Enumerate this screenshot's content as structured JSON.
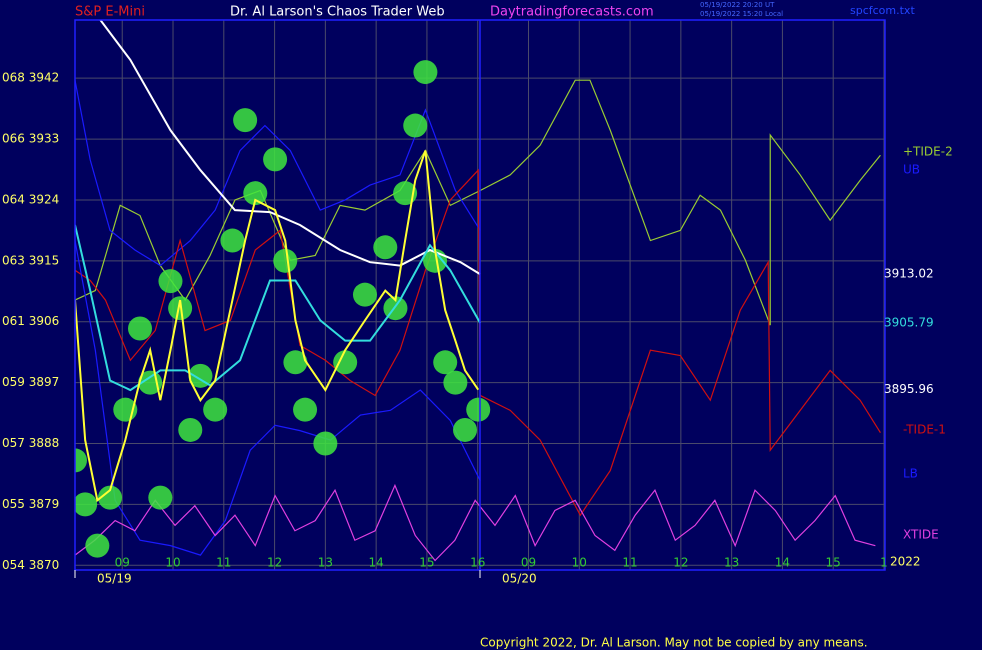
{
  "header": {
    "symbol": "S&P E-Mini",
    "site_title": "Dr. Al Larson's Chaos Trader Web",
    "url": "Daytradingforecasts.com",
    "time_ut": "05/19/2022 20:20 UT",
    "time_local": "05/19/2022 15:20 Local",
    "file": "spcfcom.txt"
  },
  "footer": "Copyright 2022, Dr. Al Larson. May not be copied by any means.",
  "chart_data": {
    "type": "line",
    "xlim": [
      8.07,
      24.02
    ],
    "ylim": [
      3869.3,
      3950.6
    ],
    "grid": true,
    "yticks": [
      {
        "value": 3942,
        "label": "068  3942"
      },
      {
        "value": 3933,
        "label": "066  3933"
      },
      {
        "value": 3924,
        "label": "064  3924"
      },
      {
        "value": 3915,
        "label": "063  3915"
      },
      {
        "value": 3906,
        "label": "061  3906"
      },
      {
        "value": 3897,
        "label": "059  3897"
      },
      {
        "value": 3888,
        "label": "057  3888"
      },
      {
        "value": 3879,
        "label": "055  3879"
      },
      {
        "value": 3870,
        "label": "054  3870"
      }
    ],
    "xticks": [
      {
        "value": 9,
        "label": "09"
      },
      10,
      11,
      12,
      13,
      14,
      15,
      16,
      {
        "value": 17,
        "label": "09"
      },
      {
        "value": 18,
        "label": "10"
      },
      {
        "value": 19,
        "label": "11"
      },
      {
        "value": 20,
        "label": "12"
      },
      {
        "value": 21,
        "label": "13"
      },
      {
        "value": 22,
        "label": "14"
      },
      {
        "value": 23,
        "label": "15"
      },
      {
        "value": 24,
        "label": "1"
      }
    ],
    "date_labels": [
      "05/19",
      "05/20"
    ],
    "year_label": "2022",
    "series": [
      {
        "name": "+TIDE-2",
        "color": "#9acd32",
        "x": [
          8.07,
          8.47,
          8.96,
          9.35,
          9.75,
          10.24,
          10.73,
          11.22,
          11.72,
          12.31,
          12.8,
          13.29,
          13.78,
          14.47,
          14.97,
          15.46,
          16.05,
          16.64,
          17.23,
          17.92,
          18.21,
          18.61,
          19.4,
          19.99,
          20.38,
          20.78,
          21.27,
          21.76,
          21.76,
          22.35,
          22.94,
          23.53,
          23.93
        ],
        "values": [
          3909.2,
          3910.6,
          3923.2,
          3921.7,
          3914.3,
          3909.2,
          3915.8,
          3924.0,
          3925.4,
          3915.1,
          3915.8,
          3923.2,
          3922.5,
          3925.4,
          3931.3,
          3923.2,
          3925.4,
          3927.7,
          3932.1,
          3941.7,
          3941.7,
          3934.3,
          3918.0,
          3919.5,
          3924.7,
          3922.5,
          3915.1,
          3905.5,
          3933.6,
          3927.7,
          3921.0,
          3926.9,
          3930.6
        ]
      },
      {
        "name": "UB",
        "color": "#1a1aff",
        "x": [
          8.07,
          8.37,
          8.76,
          9.25,
          9.75,
          10.34,
          10.83,
          11.32,
          11.81,
          12.31,
          12.9,
          13.39,
          13.88,
          14.47,
          14.97,
          15.56,
          16.05
        ],
        "values": [
          3941.7,
          3929.9,
          3919.5,
          3916.6,
          3914.3,
          3918.0,
          3922.5,
          3931.3,
          3935.0,
          3931.3,
          3922.5,
          3924.0,
          3926.2,
          3927.7,
          3937.3,
          3925.4,
          3919.5
        ]
      },
      {
        "name": "-TIDE-1",
        "color": "#d01010",
        "x": [
          8.07,
          8.37,
          8.67,
          9.16,
          9.65,
          10.14,
          10.63,
          11.13,
          11.62,
          12.11,
          12.5,
          13.0,
          13.49,
          13.98,
          14.47,
          14.97,
          15.46,
          16.01,
          16.05,
          16.64,
          17.23,
          18.02,
          18.61,
          19.4,
          19.99,
          20.58,
          21.17,
          21.72,
          21.76,
          22.35,
          22.94,
          23.53,
          23.93
        ],
        "values": [
          3913.6,
          3912.1,
          3909.2,
          3900.3,
          3904.7,
          3918.0,
          3904.7,
          3906.2,
          3916.6,
          3919.5,
          3902.5,
          3900.3,
          3897.3,
          3895.1,
          3901.8,
          3913.6,
          3924.0,
          3928.4,
          3895.1,
          3892.9,
          3888.5,
          3877.4,
          3884.0,
          3901.8,
          3901.0,
          3894.4,
          3907.7,
          3914.8,
          3887.0,
          3892.9,
          3898.8,
          3894.4,
          3889.6
        ]
      },
      {
        "name": "LB",
        "color": "#1a1aff",
        "x": [
          8.07,
          8.47,
          8.86,
          9.35,
          9.95,
          10.54,
          11.03,
          11.52,
          12.01,
          12.5,
          13.1,
          13.69,
          14.28,
          14.87,
          15.46,
          16.05
        ],
        "values": [
          3918.0,
          3901.8,
          3879.6,
          3873.7,
          3872.9,
          3871.5,
          3876.6,
          3887.0,
          3890.7,
          3889.9,
          3888.5,
          3892.2,
          3892.9,
          3895.9,
          3891.4,
          3882.5
        ]
      },
      {
        "name": "XTIDE",
        "color": "#e040e0",
        "x": [
          8.07,
          8.46,
          8.86,
          9.25,
          9.65,
          10.04,
          10.43,
          10.83,
          11.22,
          11.62,
          12.01,
          12.4,
          12.8,
          13.19,
          13.58,
          13.98,
          14.37,
          14.77,
          15.16,
          15.55,
          15.95,
          16.34,
          16.74,
          17.13,
          17.52,
          17.92,
          18.31,
          18.7,
          19.1,
          19.49,
          19.89,
          20.28,
          20.67,
          21.07,
          21.46,
          21.86,
          22.25,
          22.64,
          23.04,
          23.43,
          23.83
        ],
        "values": [
          3871.5,
          3873.7,
          3876.6,
          3875.1,
          3879.6,
          3875.9,
          3878.8,
          3874.4,
          3877.4,
          3872.9,
          3880.3,
          3875.1,
          3876.6,
          3881.1,
          3873.7,
          3875.1,
          3881.8,
          3874.4,
          3870.7,
          3873.7,
          3879.6,
          3875.9,
          3880.3,
          3872.9,
          3878.1,
          3879.6,
          3874.4,
          3872.2,
          3877.4,
          3881.1,
          3873.7,
          3875.9,
          3879.6,
          3872.9,
          3881.1,
          3878.1,
          3873.7,
          3876.6,
          3880.3,
          3873.7,
          3872.9
        ]
      },
      {
        "color": "#3ee63e",
        "marker": "circle",
        "x": [
          8.07,
          8.27,
          8.51,
          8.76,
          9.06,
          9.35,
          9.55,
          9.75,
          9.95,
          10.14,
          10.34,
          10.54,
          10.83,
          11.17,
          11.42,
          11.62,
          12.01,
          12.21,
          12.41,
          12.6,
          13.0,
          13.39,
          13.78,
          14.18,
          14.38,
          14.57,
          14.77,
          14.97,
          15.16,
          15.36,
          15.56,
          15.75,
          16.01
        ],
        "values": [
          3885.5,
          3879,
          3872.9,
          3880,
          3893,
          3905,
          3897,
          3880,
          3912,
          3908,
          3890,
          3898,
          3893,
          3918,
          3935.8,
          3925,
          3930,
          3915,
          3900,
          3893,
          3888,
          3900,
          3910,
          3917,
          3908,
          3925,
          3935,
          3942.9,
          3915,
          3900,
          3897,
          3890,
          3893
        ]
      },
      {
        "color": "#ffffff",
        "last_label": "3913.02",
        "x": [
          8.57,
          9.16,
          9.95,
          10.54,
          11.22,
          11.91,
          12.5,
          13.29,
          13.88,
          14.47,
          15.06,
          15.66,
          16.05
        ],
        "values": [
          3950.6,
          3944.7,
          3934.3,
          3928.4,
          3922.5,
          3922.2,
          3920.3,
          3916.6,
          3914.8,
          3914.3,
          3916.6,
          3914.8,
          3913.02
        ]
      },
      {
        "color": "#33dddd",
        "last_label": "3905.79",
        "x": [
          8.07,
          8.37,
          8.76,
          9.16,
          9.75,
          10.24,
          10.73,
          11.32,
          11.91,
          12.41,
          12.9,
          13.39,
          13.88,
          14.47,
          15.06,
          15.46,
          16.05
        ],
        "values": [
          3920.3,
          3910.6,
          3897.3,
          3895.9,
          3898.8,
          3898.8,
          3896.6,
          3900.3,
          3912.1,
          3912.1,
          3906.2,
          3903.2,
          3903.2,
          3909.2,
          3917.3,
          3913.6,
          3905.79
        ]
      },
      {
        "color": "#ffff33",
        "last_label": "3895.96",
        "x": [
          8.07,
          8.27,
          8.51,
          8.76,
          9.06,
          9.35,
          9.55,
          9.75,
          9.95,
          10.14,
          10.34,
          10.54,
          10.83,
          11.17,
          11.42,
          11.62,
          12.01,
          12.21,
          12.41,
          12.6,
          13.0,
          13.39,
          13.78,
          14.18,
          14.38,
          14.57,
          14.77,
          14.97,
          15.16,
          15.36,
          15.56,
          15.75,
          16.01
        ],
        "values": [
          3909.2,
          3888.5,
          3879.6,
          3881.1,
          3888.5,
          3897.3,
          3901.8,
          3894.4,
          3901.8,
          3909.2,
          3897.3,
          3894.4,
          3897.3,
          3909.2,
          3918.0,
          3924.0,
          3922.5,
          3918.0,
          3906.2,
          3900.3,
          3895.9,
          3901.8,
          3906.2,
          3910.6,
          3909.2,
          3918.0,
          3926.9,
          3931.3,
          3916.6,
          3907.7,
          3903.2,
          3898.8,
          3895.96
        ]
      }
    ]
  }
}
